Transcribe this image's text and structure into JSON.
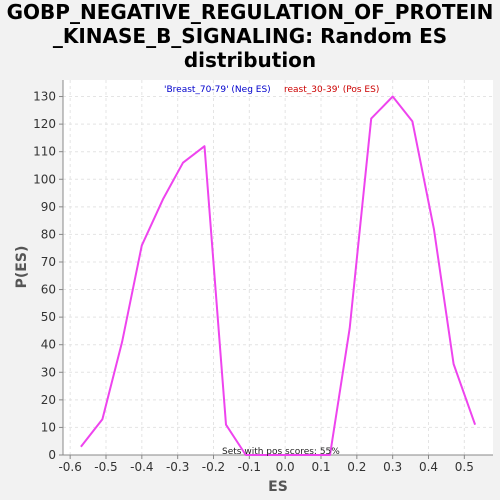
{
  "chart_data": {
    "type": "line",
    "title_lines": [
      "GOBP_NEGATIVE_REGULATION_OF_PROTEIN",
      "_KINASE_B_SIGNALING: Random ES",
      "distribution"
    ],
    "xlabel": "ES",
    "ylabel": "P(ES)",
    "xlim": [
      -0.62,
      0.58
    ],
    "ylim": [
      0,
      136
    ],
    "x_ticks": [
      -0.6,
      -0.5,
      -0.4,
      -0.3,
      -0.2,
      -0.1,
      0.0,
      0.1,
      0.2,
      0.3,
      0.4,
      0.5
    ],
    "x_tick_labels": [
      "-0.6",
      "-0.5",
      "-0.4",
      "-0.3",
      "-0.2",
      "-0.1",
      "0.0",
      "0.1",
      "0.2",
      "0.3",
      "0.4",
      "0.5"
    ],
    "y_ticks": [
      0,
      10,
      20,
      30,
      40,
      50,
      60,
      70,
      80,
      90,
      100,
      110,
      120,
      130
    ],
    "y_tick_labels": [
      "0",
      "10",
      "20",
      "30",
      "40",
      "50",
      "60",
      "70",
      "80",
      "90",
      "100",
      "110",
      "120",
      "130"
    ],
    "grid": true,
    "legend": {
      "neg_label": "'Breast_70-79' (Neg ES)",
      "pos_label": "reast_30-39' (Pos ES)",
      "neg_color": "#0000cc",
      "pos_color": "#cc0000"
    },
    "annotation": "Sets with pos scores: 55%",
    "series": [
      {
        "color": "#ee44ee",
        "points": [
          [
            -0.57,
            3
          ],
          [
            -0.51,
            13
          ],
          [
            -0.455,
            41
          ],
          [
            -0.4,
            76
          ],
          [
            -0.34,
            93
          ],
          [
            -0.285,
            106
          ],
          [
            -0.225,
            112
          ],
          [
            -0.165,
            11
          ],
          [
            -0.11,
            0
          ],
          [
            0.0,
            0
          ],
          [
            0.125,
            0
          ],
          [
            0.18,
            46
          ],
          [
            0.24,
            122
          ],
          [
            0.3,
            130
          ],
          [
            0.355,
            121
          ],
          [
            0.415,
            82
          ],
          [
            0.47,
            33
          ],
          [
            0.53,
            11
          ]
        ]
      }
    ]
  }
}
